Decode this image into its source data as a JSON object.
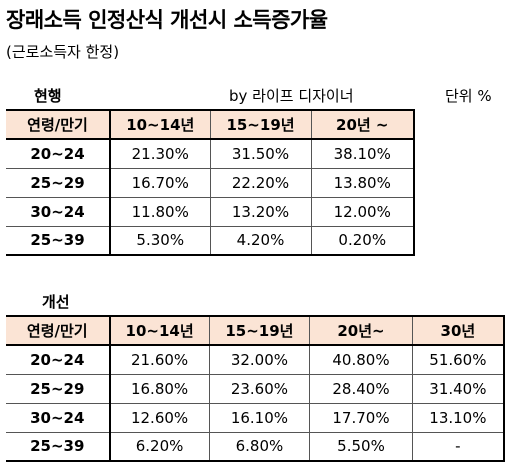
{
  "title": "장래소득 인정산식 개선시 소득증가율",
  "subtitle": "(근로소득자 한정)",
  "current": {
    "label": "현행",
    "byline": "by 라이프 디자이너",
    "unit": "단위 %",
    "headers": [
      "연령/만기",
      "10~14년",
      "15~19년",
      "20년 ~"
    ],
    "rows": [
      [
        "20~24",
        "21.30%",
        "31.50%",
        "38.10%"
      ],
      [
        "25~29",
        "16.70%",
        "22.20%",
        "13.80%"
      ],
      [
        "30~24",
        "11.80%",
        "13.20%",
        "12.00%"
      ],
      [
        "25~39",
        "5.30%",
        "4.20%",
        "0.20%"
      ]
    ]
  },
  "improved": {
    "label": "개선",
    "headers": [
      "연령/만기",
      "10~14년",
      "15~19년",
      "20년~",
      "30년"
    ],
    "rows": [
      [
        "20~24",
        "21.60%",
        "32.00%",
        "40.80%",
        "51.60%"
      ],
      [
        "25~29",
        "16.80%",
        "23.60%",
        "28.40%",
        "31.40%"
      ],
      [
        "30~24",
        "12.60%",
        "16.10%",
        "17.70%",
        "13.10%"
      ],
      [
        "25~39",
        "6.20%",
        "6.80%",
        "5.50%",
        "-"
      ]
    ]
  },
  "colors": {
    "header_fill": "#fbe4d5",
    "border": "#000000"
  }
}
